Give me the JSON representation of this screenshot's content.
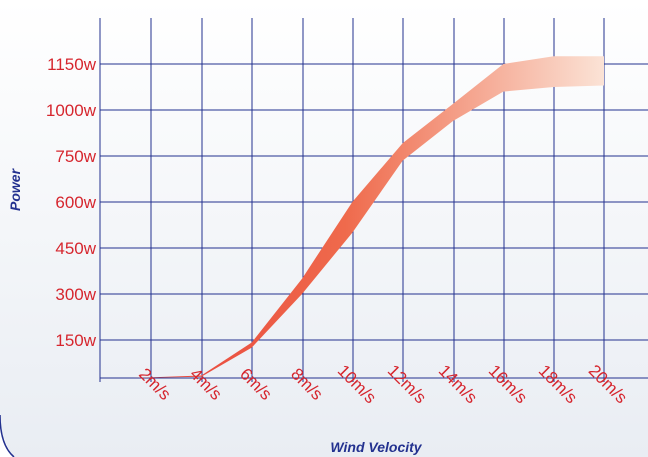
{
  "chart_data": {
    "type": "area",
    "title": "",
    "xlabel": "Wind Velocity",
    "ylabel": "Power",
    "x_ticks": [
      "2m/s",
      "4m/s",
      "6m/s",
      "8m/s",
      "10m/s",
      "12m/s",
      "14m/s",
      "16m/s",
      "18m/s",
      "20m/s"
    ],
    "y_ticks": [
      "150w",
      "300w",
      "450w",
      "600w",
      "750w",
      "1000w",
      "1150w"
    ],
    "grid": true,
    "colors": {
      "band_low": "#e8413a",
      "band_high": "#fbe3d6",
      "grid": "#23318f",
      "ticks": "#d6262e",
      "axis_label": "#23318f"
    },
    "series": [
      {
        "band": true,
        "x": [
          2,
          4,
          6,
          8,
          10,
          12,
          14,
          16,
          18,
          20
        ],
        "upper": [
          0,
          10,
          140,
          350,
          600,
          820,
          1020,
          1150,
          1175,
          1175
        ],
        "lower": [
          0,
          5,
          120,
          300,
          500,
          735,
          940,
          1060,
          1075,
          1080
        ]
      }
    ]
  }
}
